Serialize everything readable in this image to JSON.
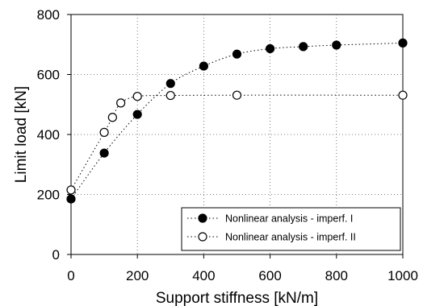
{
  "chart_data": {
    "type": "scatter",
    "xlabel": "Support stiffness [kN/m]",
    "ylabel": "Limit load [kN]",
    "xlim": [
      0,
      1000
    ],
    "ylim": [
      0,
      800
    ],
    "xticks": [
      "0",
      "200",
      "400",
      "600",
      "800",
      "1000"
    ],
    "yticks": [
      "0",
      "200",
      "400",
      "600",
      "800"
    ],
    "grid": true,
    "legend_position": "bottom-right",
    "series": [
      {
        "name": "Nonlinear analysis - imperf. I",
        "marker": "filled-circle",
        "color": "#000000",
        "x": [
          0,
          100,
          200,
          300,
          400,
          500,
          600,
          700,
          800,
          1000
        ],
        "y": [
          185,
          338,
          467,
          570,
          628,
          668,
          686,
          693,
          698,
          705
        ]
      },
      {
        "name": "Nonlinear analysis - imperf. II",
        "marker": "open-circle",
        "color": "#000000",
        "x": [
          0,
          100,
          125,
          150,
          200,
          300,
          500,
          1000
        ],
        "y": [
          215,
          407,
          457,
          505,
          527,
          530,
          531,
          531
        ]
      }
    ]
  }
}
